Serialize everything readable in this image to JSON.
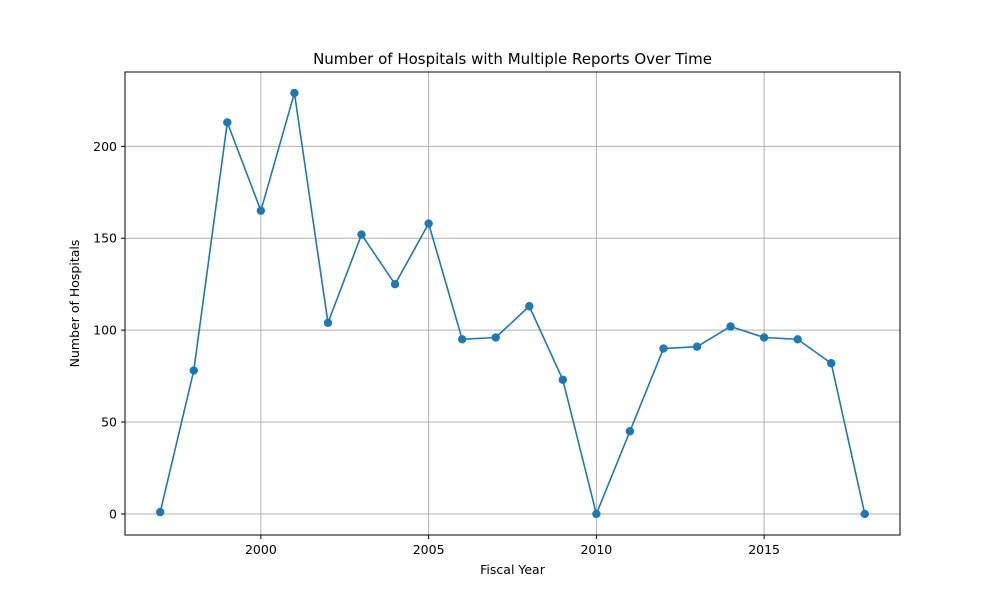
{
  "chart_data": {
    "type": "line",
    "title": "Number of Hospitals with Multiple Reports Over Time",
    "xlabel": "Fiscal Year",
    "ylabel": "Number of Hospitals",
    "x": [
      1997,
      1998,
      1999,
      2000,
      2001,
      2002,
      2003,
      2004,
      2005,
      2006,
      2007,
      2008,
      2009,
      2010,
      2011,
      2012,
      2013,
      2014,
      2015,
      2016,
      2017,
      2018
    ],
    "series": [
      {
        "values": [
          1,
          78,
          213,
          165,
          229,
          104,
          152,
          125,
          158,
          95,
          96,
          113,
          73,
          0,
          45,
          90,
          91,
          102,
          96,
          95,
          82,
          0
        ]
      }
    ],
    "xlim": [
      1995.95,
      2019.05
    ],
    "ylim": [
      -11.45,
      240.45
    ],
    "xticks": [
      "2000",
      "2005",
      "2010",
      "2015"
    ],
    "yticks": [
      "0",
      "50",
      "100",
      "150",
      "200"
    ],
    "grid": true,
    "marker": "circle",
    "colors": {
      "line": "#1f77b4",
      "grid": "#b0b0b0",
      "axes": "#000000"
    }
  }
}
